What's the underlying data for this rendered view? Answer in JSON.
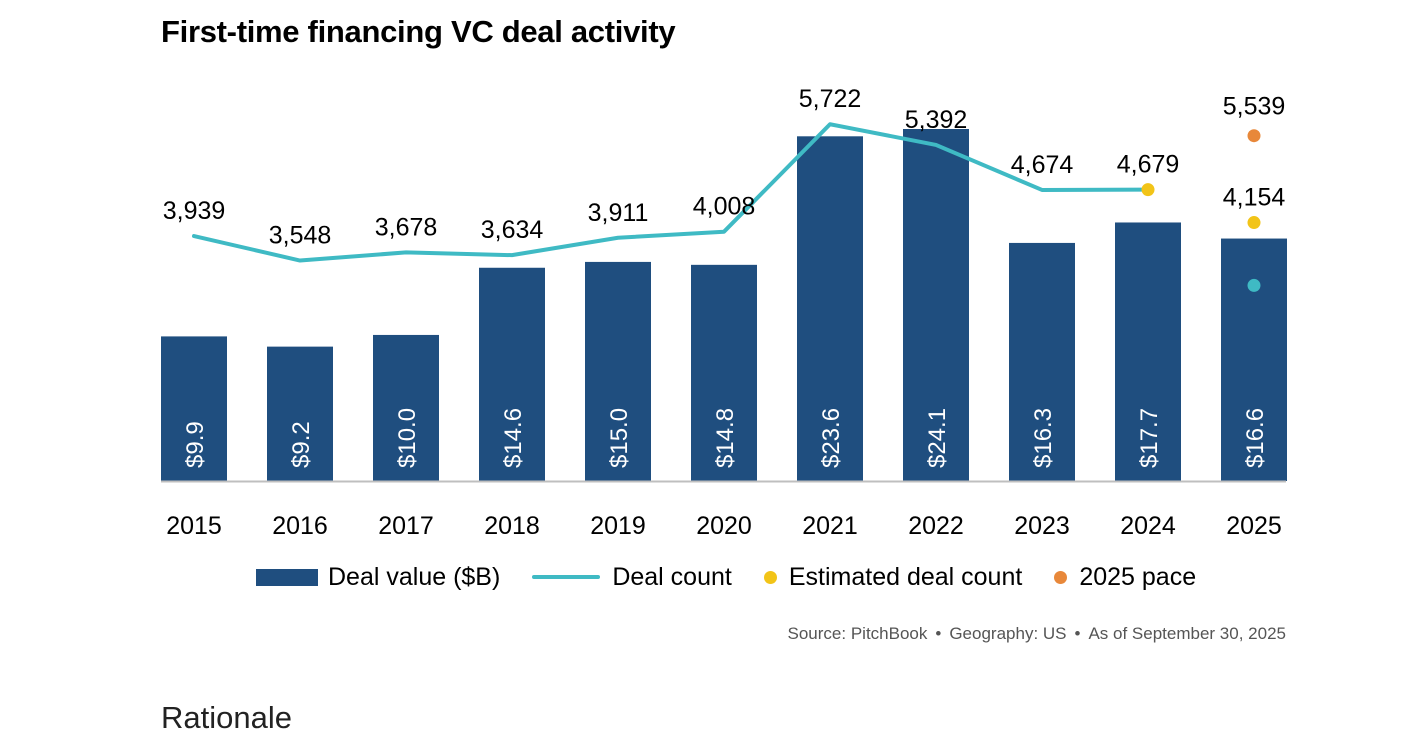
{
  "title": "First-time financing VC deal activity",
  "chart_data": {
    "type": "bar",
    "categories": [
      "2015",
      "2016",
      "2017",
      "2018",
      "2019",
      "2020",
      "2021",
      "2022",
      "2023",
      "2024",
      "2025"
    ],
    "series": [
      {
        "name": "Deal value ($B)",
        "type": "bar",
        "color": "#1f4e7f",
        "values": [
          9.9,
          9.2,
          10.0,
          14.6,
          15.0,
          14.8,
          23.6,
          24.1,
          16.3,
          17.7,
          16.6
        ],
        "labels": [
          "$9.9",
          "$9.2",
          "$10.0",
          "$14.6",
          "$15.0",
          "$14.8",
          "$23.6",
          "$24.1",
          "$16.3",
          "$17.7",
          "$16.6"
        ]
      },
      {
        "name": "Deal count",
        "type": "line",
        "color": "#3fbac4",
        "values": [
          3939,
          3548,
          3678,
          3634,
          3911,
          4008,
          5722,
          5392,
          4674,
          4679,
          3151
        ],
        "labels": [
          "3,939",
          "3,548",
          "3,678",
          "3,634",
          "3,911",
          "4,008",
          "5,722",
          "5,392",
          "4,674",
          "",
          ""
        ]
      },
      {
        "name": "Estimated deal count",
        "type": "point",
        "color": "#f2c418",
        "points": [
          {
            "x": "2024",
            "y": 4679,
            "label": "4,679"
          },
          {
            "x": "2025",
            "y": 4154,
            "label": "4,154"
          }
        ]
      },
      {
        "name": "2025 pace",
        "type": "point",
        "color": "#e8883a",
        "points": [
          {
            "x": "2025",
            "y": 5539,
            "label": "5,539"
          }
        ]
      }
    ],
    "bar_ylim": [
      0,
      27
    ],
    "line_ylim": [
      0,
      6200
    ],
    "legend_position": "bottom",
    "grid": false
  },
  "legend": {
    "deal_value": "Deal value ($B)",
    "deal_count": "Deal count",
    "estimated": "Estimated deal count",
    "pace": "2025 pace"
  },
  "source": {
    "source": "Source: PitchBook",
    "geography": "Geography: US",
    "as_of": "As of September 30, 2025",
    "separator": "•"
  },
  "footer": {
    "rationale": "Rationale"
  }
}
